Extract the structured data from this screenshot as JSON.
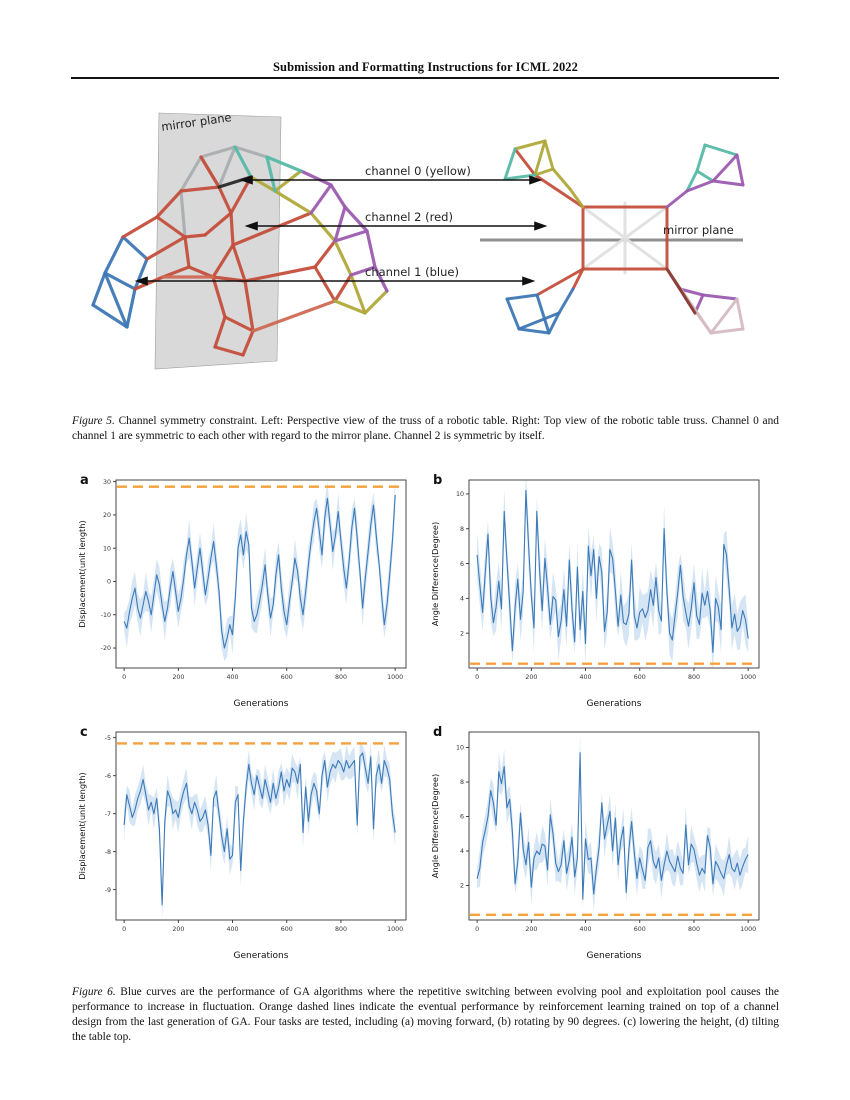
{
  "page": {
    "header": "Submission and Formatting Instructions for ICML 2022"
  },
  "figure5": {
    "mirror_label_left": "mirror plane",
    "mirror_label_right": "mirror plane",
    "channels": [
      {
        "label": "channel 0 (yellow)",
        "color": "#b0a93a"
      },
      {
        "label": "channel 2 (red)",
        "color": "#c44f3c"
      },
      {
        "label": "channel 1 (blue)",
        "color": "#3e78b5"
      }
    ],
    "caption_tag": "Figure 5.",
    "caption_text": "Channel symmetry constraint. Left: Perspective view of the truss of a robotic table. Right: Top view of the robotic table truss. Channel 0 and channel 1 are symmetric to each other with regard to the mirror plane. Channel 2 is symmetric by itself."
  },
  "figure6": {
    "caption_tag": "Figure 6.",
    "caption_text": "Blue curves are the performance of GA algorithms where the repetitive switching between evolving pool and exploitation pool causes the performance to increase in fluctuation. Orange dashed lines indicate the eventual performance by reinforcement learning trained on top of a channel design from the last generation of GA. Four tasks are tested, including (a) moving forward, (b) rotating by 90 degrees. (c) lowering the height, (d) tilting the table top.",
    "chart_style": {
      "line": "#3d7ab8",
      "band": "#b9d4ec",
      "dash": "#f6a13a",
      "spine": "#333333"
    }
  },
  "chart_data": [
    {
      "panel_label": "a",
      "type": "line",
      "xlabel": "Generations",
      "ylabel": "Displacement(unit length)",
      "x_start": 0,
      "x_step": 10,
      "xlim": [
        -30,
        1040
      ],
      "ylim": [
        -26,
        30.5
      ],
      "xticks": [
        0,
        200,
        400,
        600,
        800,
        1000
      ],
      "yticks": [
        -20,
        -10,
        0,
        10,
        20,
        30
      ],
      "orange_dashed_y": 28.5,
      "band_halfwidth": 4.5,
      "values": [
        -12,
        -14,
        -9,
        -5,
        -2,
        -8,
        -11,
        -7,
        -3,
        -6,
        -10,
        -4,
        2,
        -1,
        -7,
        -12,
        -8,
        -2,
        3,
        -3,
        -9,
        -5,
        1,
        8,
        13,
        6,
        -2,
        4,
        10,
        3,
        -4,
        1,
        7,
        12,
        5,
        -3,
        -15,
        -20,
        -17,
        -13,
        -16,
        -5,
        10,
        14,
        8,
        15,
        11,
        -8,
        -12,
        -10,
        -6,
        -1,
        5,
        -4,
        -11,
        -7,
        2,
        8,
        -2,
        -9,
        -13,
        -6,
        0,
        7,
        3,
        -5,
        -10,
        -3,
        5,
        12,
        18,
        22,
        15,
        8,
        19,
        25,
        17,
        9,
        14,
        21,
        12,
        4,
        -2,
        6,
        16,
        22,
        13,
        3,
        -8,
        1,
        9,
        17,
        23,
        14,
        6,
        -4,
        -13,
        -7,
        2,
        12,
        26
      ]
    },
    {
      "panel_label": "b",
      "type": "line",
      "xlabel": "Generations",
      "ylabel": "Angle Difference(Degree)",
      "x_start": 0,
      "x_step": 10,
      "xlim": [
        -30,
        1040
      ],
      "ylim": [
        0,
        10.8
      ],
      "xticks": [
        0,
        200,
        400,
        600,
        800,
        1000
      ],
      "yticks": [
        2,
        4,
        6,
        8,
        10
      ],
      "orange_dashed_y": 0.25,
      "band_halfwidth": 1.1,
      "values": [
        6.5,
        4.8,
        3.2,
        5.5,
        7.7,
        4.1,
        2.6,
        3.5,
        5.0,
        3.4,
        9.0,
        6.2,
        3.6,
        1.0,
        3.5,
        5.1,
        2.8,
        4.4,
        10.2,
        7.0,
        4.2,
        2.3,
        9.0,
        5.7,
        3.3,
        6.3,
        4.6,
        2.5,
        4.1,
        3.9,
        1.8,
        2.7,
        4.5,
        2.4,
        6.2,
        3.4,
        1.5,
        5.8,
        2.2,
        4.4,
        1.4,
        7.0,
        5.3,
        6.8,
        4.0,
        6.4,
        5.5,
        2.1,
        3.2,
        6.8,
        6.3,
        4.4,
        2.4,
        4.2,
        2.6,
        2.5,
        3.1,
        6.2,
        3.0,
        2.3,
        3.2,
        3.4,
        2.9,
        3.3,
        4.5,
        3.6,
        5.2,
        3.3,
        2.7,
        8.0,
        4.4,
        2.0,
        1.6,
        3.0,
        4.3,
        5.9,
        4.1,
        3.2,
        2.4,
        3.4,
        4.9,
        3.0,
        2.5,
        4.3,
        3.6,
        4.4,
        3.3,
        0.9,
        4.0,
        3.5,
        2.2,
        7.1,
        6.5,
        4.5,
        2.3,
        3.1,
        2.1,
        2.4,
        3.3,
        2.8,
        1.7
      ]
    },
    {
      "panel_label": "c",
      "type": "line",
      "xlabel": "Generations",
      "ylabel": "Displacement(unit length)",
      "x_start": 0,
      "x_step": 10,
      "xlim": [
        -30,
        1040
      ],
      "ylim": [
        -9.8,
        -4.85
      ],
      "xticks": [
        0,
        200,
        400,
        600,
        800,
        1000
      ],
      "yticks": [
        -5,
        -6,
        -7,
        -8,
        -9
      ],
      "orange_dashed_y": -5.15,
      "band_halfwidth": 0.33,
      "values": [
        -7.3,
        -6.5,
        -6.8,
        -7.1,
        -6.9,
        -6.6,
        -6.4,
        -6.1,
        -6.5,
        -6.9,
        -6.7,
        -7.0,
        -6.6,
        -7.4,
        -9.4,
        -7.2,
        -6.4,
        -6.6,
        -7.0,
        -6.9,
        -7.1,
        -6.7,
        -6.4,
        -6.2,
        -6.8,
        -7.0,
        -6.7,
        -6.9,
        -7.2,
        -7.1,
        -6.9,
        -7.3,
        -8.1,
        -6.6,
        -6.4,
        -7.0,
        -7.6,
        -8.0,
        -7.4,
        -8.2,
        -8.1,
        -6.7,
        -6.5,
        -8.5,
        -7.2,
        -6.3,
        -5.7,
        -6.2,
        -6.5,
        -6.0,
        -6.3,
        -6.6,
        -6.1,
        -6.4,
        -6.7,
        -6.2,
        -6.6,
        -6.3,
        -5.9,
        -6.4,
        -6.1,
        -6.3,
        -5.8,
        -5.9,
        -6.2,
        -5.7,
        -7.5,
        -6.3,
        -7.2,
        -6.5,
        -6.2,
        -6.4,
        -7.0,
        -6.0,
        -5.6,
        -6.3,
        -5.9,
        -5.7,
        -5.8,
        -5.6,
        -5.7,
        -5.9,
        -5.6,
        -5.8,
        -5.7,
        -5.6,
        -7.3,
        -5.5,
        -5.4,
        -5.8,
        -6.2,
        -5.5,
        -7.4,
        -6.0,
        -5.7,
        -6.2,
        -5.6,
        -5.8,
        -6.1,
        -7.0,
        -7.5
      ]
    },
    {
      "panel_label": "d",
      "type": "line",
      "xlabel": "Generations",
      "ylabel": "Angle Difference(Degree)",
      "x_start": 0,
      "x_step": 10,
      "xlim": [
        -30,
        1040
      ],
      "ylim": [
        0,
        10.9
      ],
      "xticks": [
        0,
        200,
        400,
        600,
        800,
        1000
      ],
      "yticks": [
        2,
        4,
        6,
        8,
        10
      ],
      "orange_dashed_y": 0.3,
      "band_halfwidth": 0.85,
      "values": [
        2.4,
        3.0,
        4.5,
        5.2,
        6.0,
        7.5,
        6.8,
        5.5,
        8.6,
        7.9,
        8.9,
        6.5,
        7.0,
        5.1,
        2.1,
        3.4,
        6.2,
        4.1,
        3.2,
        4.5,
        1.9,
        3.6,
        4.0,
        3.8,
        4.4,
        4.3,
        2.9,
        6.1,
        5.0,
        3.3,
        2.8,
        3.2,
        4.6,
        2.7,
        3.5,
        4.8,
        2.5,
        3.6,
        9.7,
        1.2,
        4.7,
        3.5,
        3.6,
        1.5,
        3.0,
        4.2,
        6.8,
        4.7,
        5.5,
        6.3,
        4.0,
        5.9,
        3.2,
        4.6,
        5.4,
        1.6,
        4.1,
        5.7,
        3.9,
        2.4,
        3.6,
        2.9,
        2.3,
        4.2,
        4.6,
        3.4,
        3.0,
        3.6,
        2.3,
        3.2,
        4.0,
        3.4,
        3.1,
        2.8,
        3.7,
        3.0,
        2.7,
        5.5,
        3.2,
        4.4,
        4.1,
        3.3,
        2.6,
        3.0,
        2.7,
        4.9,
        4.2,
        2.1,
        3.4,
        3.1,
        2.7,
        2.4,
        3.2,
        3.8,
        3.0,
        2.8,
        3.3,
        2.6,
        3.1,
        3.5,
        3.8
      ]
    }
  ]
}
